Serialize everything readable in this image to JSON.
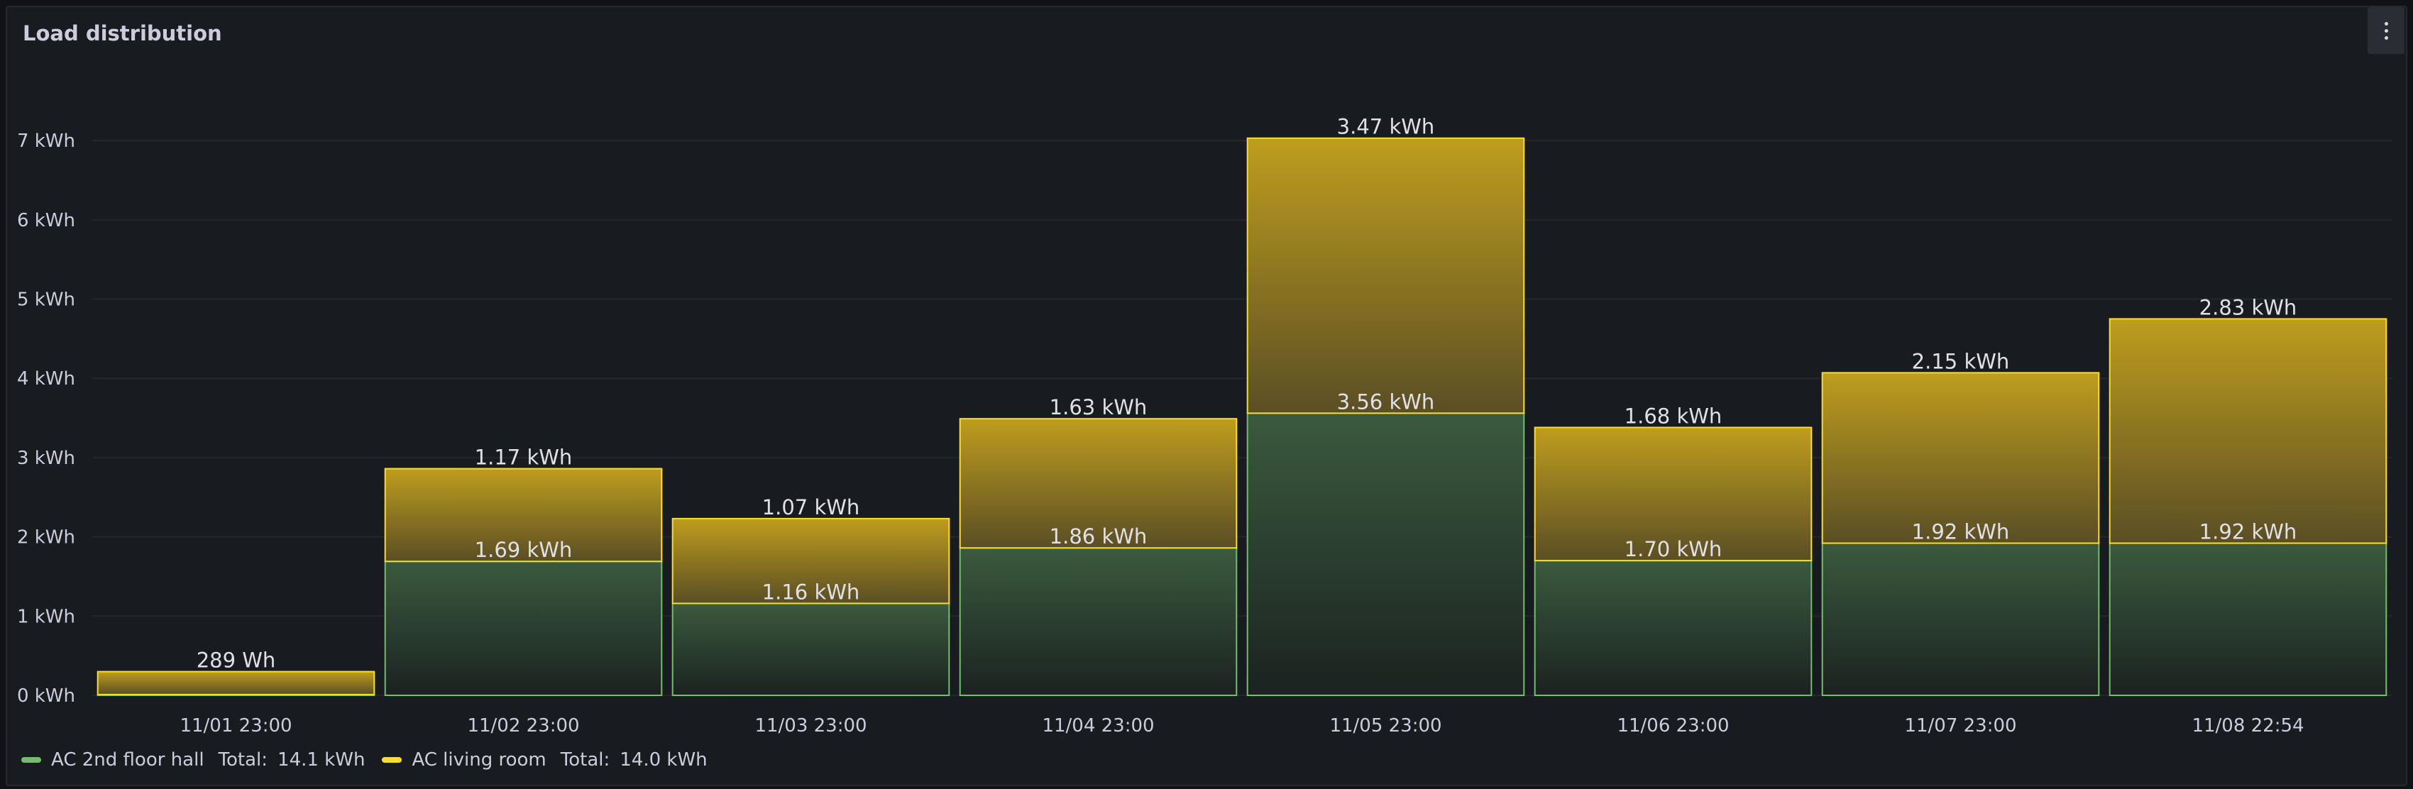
{
  "panel": {
    "title": "Load distribution",
    "menu_icon": "vertical-ellipsis-icon"
  },
  "legend": [
    {
      "name": "AC 2nd floor hall",
      "total_label": "Total:",
      "total_value": "14.1 kWh",
      "color": "#73bf69"
    },
    {
      "name": "AC living room",
      "total_label": "Total:",
      "total_value": "14.0 kWh",
      "color": "#fade2a"
    }
  ],
  "chart_data": {
    "type": "bar",
    "stacked": true,
    "categories": [
      "11/01 23:00",
      "11/02 23:00",
      "11/03 23:00",
      "11/04 23:00",
      "11/05 23:00",
      "11/06 23:00",
      "11/07 23:00",
      "11/08 22:54"
    ],
    "series": [
      {
        "name": "AC 2nd floor hall",
        "color": "#73bf69",
        "values": [
          0.01,
          1.69,
          1.16,
          1.86,
          3.56,
          1.7,
          1.92,
          1.92
        ],
        "labels": [
          "",
          "1.69 kWh",
          "1.16 kWh",
          "1.86 kWh",
          "3.56 kWh",
          "1.70 kWh",
          "1.92 kWh",
          "1.92 kWh"
        ]
      },
      {
        "name": "AC living room",
        "color": "#fade2a",
        "values": [
          0.289,
          1.17,
          1.07,
          1.63,
          3.47,
          1.68,
          2.15,
          2.83
        ],
        "labels": [
          "289 Wh",
          "1.17 kWh",
          "1.07 kWh",
          "1.63 kWh",
          "3.47 kWh",
          "1.68 kWh",
          "2.15 kWh",
          "2.83 kWh"
        ]
      }
    ],
    "y_ticks": [
      0,
      1,
      2,
      3,
      4,
      5,
      6,
      7
    ],
    "y_tick_labels": [
      "0 kWh",
      "1 kWh",
      "2 kWh",
      "3 kWh",
      "4 kWh",
      "5 kWh",
      "6 kWh",
      "7 kWh"
    ],
    "ylim": [
      0,
      7.05
    ],
    "grid": true,
    "legend_position": "bottom-left"
  }
}
